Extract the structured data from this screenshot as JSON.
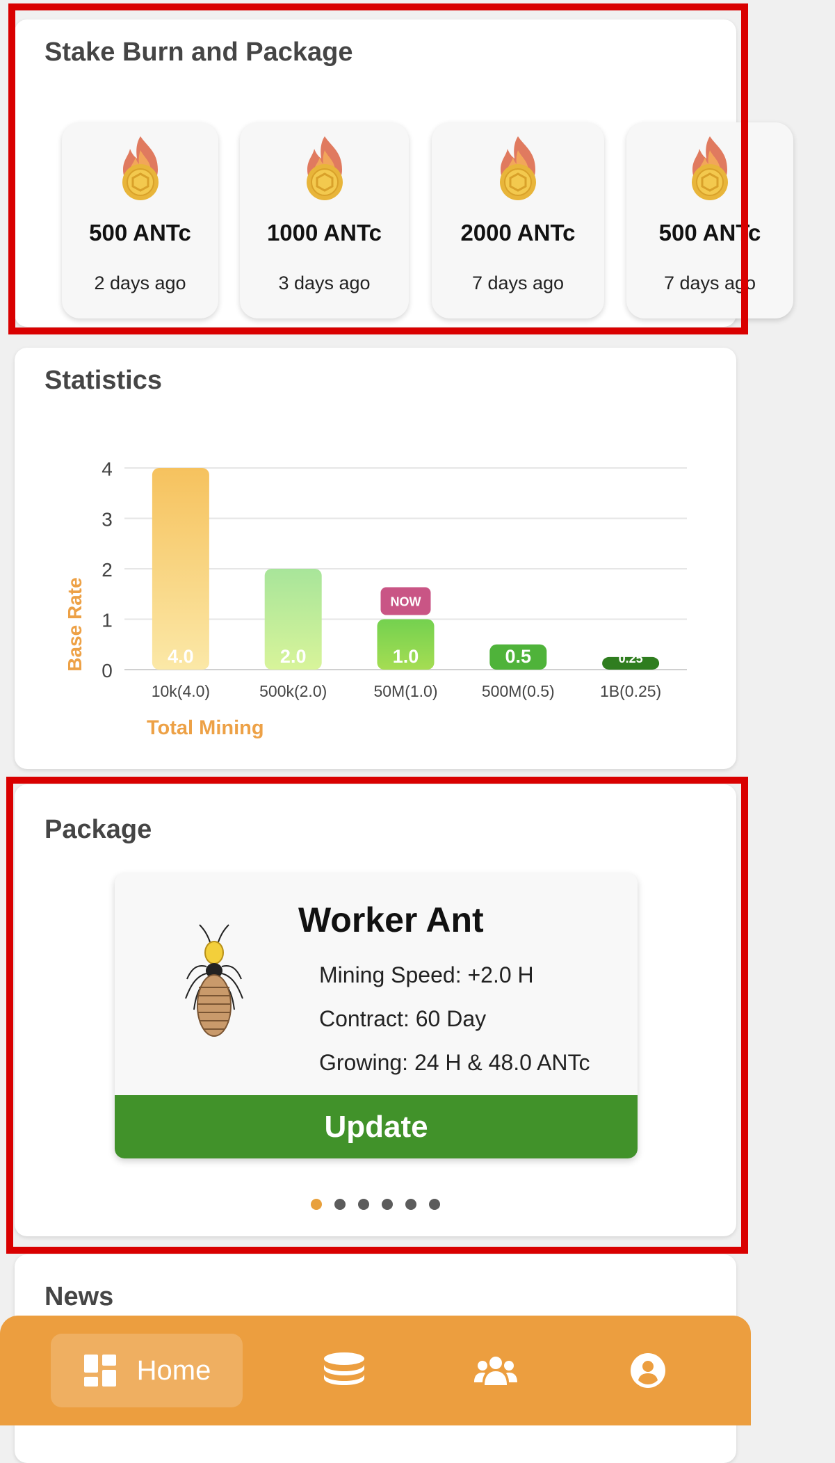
{
  "stake_section": {
    "title": "Stake Burn and Package",
    "items": [
      {
        "amount": "500 ANTc",
        "time": "2 days ago"
      },
      {
        "amount": "1000 ANTc",
        "time": "3 days ago"
      },
      {
        "amount": "2000 ANTc",
        "time": "7 days ago"
      },
      {
        "amount": "500 ANTc",
        "time": "7 days ago"
      }
    ]
  },
  "statistics": {
    "title": "Statistics",
    "now_badge": "NOW"
  },
  "chart_data": {
    "type": "bar",
    "categories": [
      "10k(4.0)",
      "500k(2.0)",
      "50M(1.0)",
      "500M(0.5)",
      "1B(0.25)"
    ],
    "values": [
      4.0,
      2.0,
      1.0,
      0.5,
      0.25
    ],
    "value_labels": [
      "4.0",
      "2.0",
      "1.0",
      "0.5",
      "0.25"
    ],
    "xlabel": "Total Mining",
    "ylabel": "Base Rate",
    "ylim": [
      0,
      4
    ],
    "yticks": [
      "0",
      "1",
      "2",
      "3",
      "4"
    ],
    "grid": true,
    "highlighted_category": "50M(1.0)",
    "colors": {
      "bar_top": [
        "#f6c25e",
        "#a8e59a",
        "#74d14f",
        "#4fb33a",
        "#2f7d1f"
      ],
      "bar_bottom": [
        "#fbe8a7",
        "#d8f49a",
        "#a5dd53",
        "#4fb33a",
        "#2f7d1f"
      ],
      "axis_label": "#eda146",
      "badge": "#c95585"
    }
  },
  "package": {
    "title": "Package",
    "name": "Worker Ant",
    "mining_speed": "Mining Speed: +2.0 H",
    "contract": "Contract: 60 Day",
    "growing": "Growing: 24 H  & 48.0 ANTc",
    "button": "Update",
    "pages": 6,
    "active_page": 0
  },
  "news": {
    "title": "News"
  },
  "nav": {
    "items": [
      {
        "label": "Home",
        "icon": "dashboard-icon",
        "active": true
      },
      {
        "label": "",
        "icon": "coins-icon"
      },
      {
        "label": "",
        "icon": "team-icon"
      },
      {
        "label": "",
        "icon": "account-icon"
      }
    ]
  },
  "colors": {
    "accent": "#ec9e3f",
    "highlight_frame": "#d90000",
    "button_green": "#41922a"
  }
}
